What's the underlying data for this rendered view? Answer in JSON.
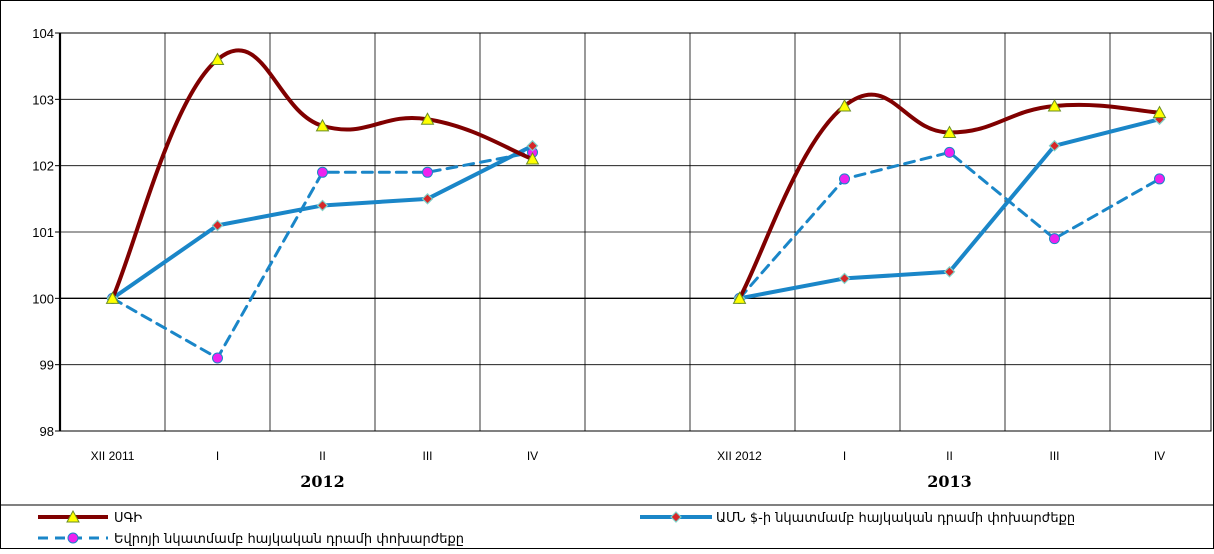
{
  "chart_data": {
    "type": "line",
    "ylim": [
      98,
      104
    ],
    "yticks": [
      98,
      99,
      100,
      101,
      102,
      103,
      104
    ],
    "grid": true,
    "legend_position": "bottom",
    "groups": [
      {
        "label": "2012",
        "categories": [
          "XII 2011",
          "I",
          "II",
          "III",
          "IV"
        ]
      },
      {
        "label": "2013",
        "categories": [
          "XII 2012",
          "I",
          "II",
          "III",
          "IV"
        ]
      }
    ],
    "series": [
      {
        "name": "ՍԳԻ",
        "color": "#800000",
        "marker": "yellow-triangle",
        "line_style": "smooth-solid",
        "values_2012": [
          100.0,
          103.6,
          102.6,
          102.7,
          102.1
        ],
        "values_2013": [
          100.0,
          102.9,
          102.5,
          102.9,
          102.8
        ]
      },
      {
        "name": "ԱՄՆ $-ի նկատմամբ հայկական դրամի փոխարժեքը",
        "color": "#1a86c8",
        "marker": "red-diamond",
        "line_style": "solid",
        "values_2012": [
          100.0,
          101.1,
          101.4,
          101.5,
          102.3
        ],
        "values_2013": [
          100.0,
          100.3,
          100.4,
          102.3,
          102.7
        ]
      },
      {
        "name": "Եվրոյի նկատմամբ հայկական դրամի փոխարժեքը",
        "color": "#1a86c8",
        "marker": "magenta-circle",
        "line_style": "dashed",
        "values_2012": [
          100.0,
          99.1,
          101.9,
          101.9,
          102.2
        ],
        "values_2013": [
          100.0,
          101.8,
          102.2,
          100.9,
          101.8
        ]
      }
    ]
  }
}
